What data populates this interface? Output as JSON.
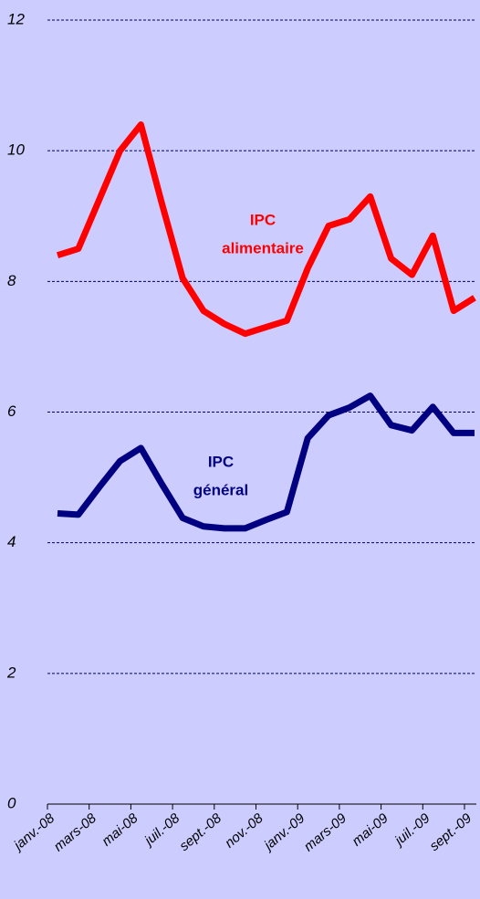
{
  "chart_data": {
    "type": "line",
    "categories": [
      "janv.-08",
      null,
      "mars-08",
      null,
      "mai-08",
      null,
      "juil.-08",
      null,
      "sept.-08",
      null,
      "nov.-08",
      null,
      "janv.-09",
      null,
      "mars-09",
      null,
      "mai-09",
      null,
      "juil.-09",
      null,
      "sept.-09"
    ],
    "series": [
      {
        "color": "#ff0000",
        "values": [
          8.4,
          8.5,
          9.25,
          10.0,
          10.4,
          9.2,
          8.05,
          7.55,
          7.35,
          7.2,
          7.3,
          7.4,
          8.2,
          8.85,
          8.95,
          9.3,
          8.35,
          8.1,
          8.7,
          7.55,
          7.75
        ]
      },
      {
        "color": "#000080",
        "values": [
          4.45,
          4.43,
          4.85,
          5.25,
          5.45,
          4.9,
          4.38,
          4.25,
          4.22,
          4.22,
          4.35,
          4.47,
          5.6,
          5.95,
          6.07,
          6.25,
          5.8,
          5.72,
          6.08,
          5.68,
          5.68
        ]
      }
    ],
    "annotations": [
      {
        "lines": [
          "IPC",
          "alimentaire"
        ]
      },
      {
        "lines": [
          "IPC",
          "général"
        ]
      }
    ],
    "ylim": [
      0,
      12
    ],
    "yticks": [
      0,
      2,
      4,
      6,
      8,
      10,
      12
    ],
    "grid": true
  }
}
